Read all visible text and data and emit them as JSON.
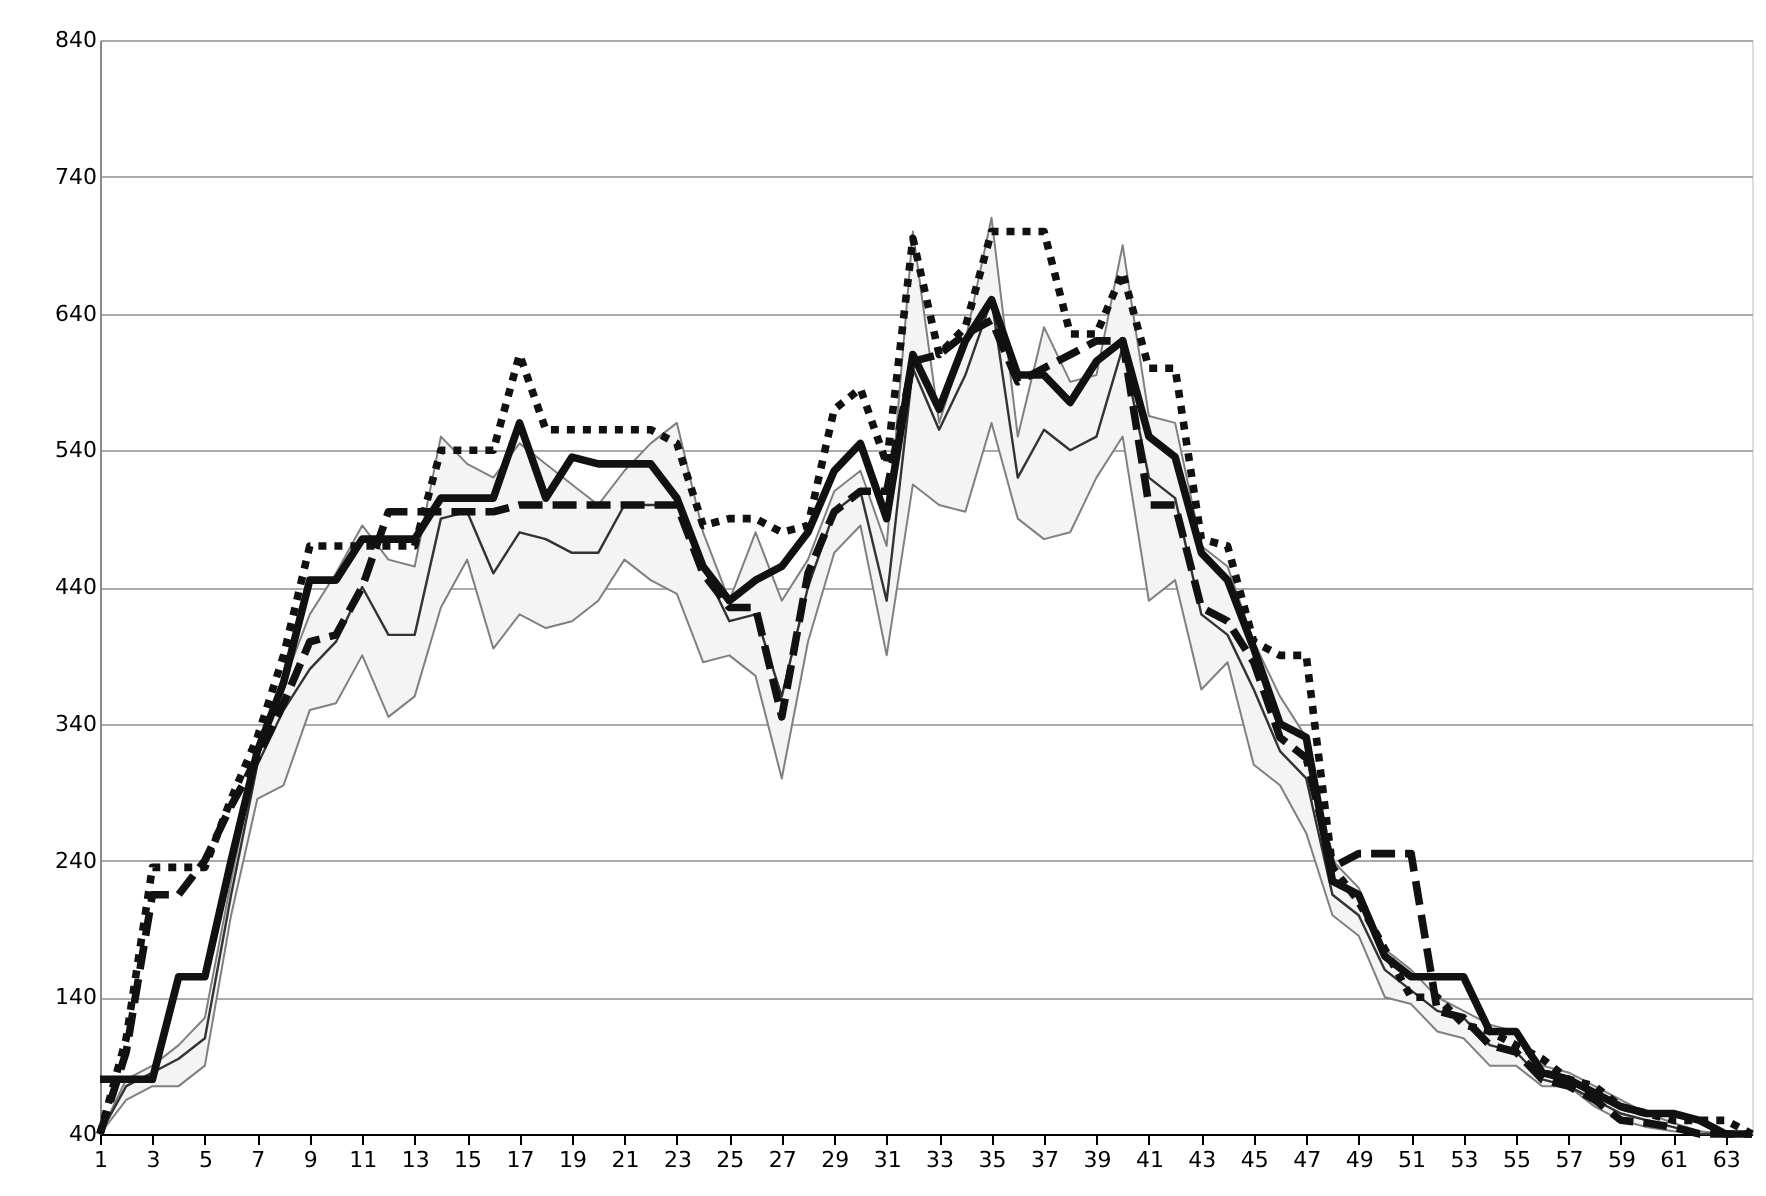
{
  "chart_data": {
    "type": "line",
    "xlim": [
      1,
      64
    ],
    "xticks": [
      1,
      3,
      5,
      7,
      9,
      11,
      13,
      15,
      17,
      19,
      21,
      23,
      25,
      27,
      29,
      31,
      33,
      35,
      37,
      39,
      41,
      43,
      45,
      47,
      49,
      51,
      53,
      55,
      57,
      59,
      61,
      63
    ],
    "ylim": [
      40,
      840
    ],
    "yticks": [
      40,
      140,
      240,
      340,
      440,
      540,
      640,
      740,
      840
    ],
    "grid": "y",
    "x": [
      1,
      2,
      3,
      4,
      5,
      6,
      7,
      8,
      9,
      10,
      11,
      12,
      13,
      14,
      15,
      16,
      17,
      18,
      19,
      20,
      21,
      22,
      23,
      24,
      25,
      26,
      27,
      28,
      29,
      30,
      31,
      32,
      33,
      34,
      35,
      36,
      37,
      38,
      39,
      40,
      41,
      42,
      43,
      44,
      45,
      46,
      47,
      48,
      49,
      50,
      51,
      52,
      53,
      54,
      55,
      56,
      57,
      58,
      59,
      60,
      61,
      62,
      63,
      64
    ],
    "series": [
      {
        "color": "#333333",
        "line_style": "solid",
        "values": [
          40,
          75,
          85,
          95,
          110,
          215,
          310,
          350,
          380,
          400,
          440,
          405,
          405,
          490,
          495,
          450,
          480,
          475,
          465,
          465,
          500,
          500,
          500,
          455,
          415,
          420,
          360,
          440,
          495,
          510,
          430,
          600,
          555,
          595,
          650,
          520,
          555,
          540,
          550,
          615,
          520,
          505,
          420,
          405,
          365,
          320,
          300,
          215,
          200,
          160,
          145,
          130,
          125,
          105,
          100,
          80,
          75,
          65,
          55,
          50,
          45,
          40,
          40,
          40
        ],
        "lower": [
          40,
          65,
          75,
          75,
          90,
          200,
          285,
          295,
          350,
          355,
          390,
          345,
          360,
          425,
          460,
          395,
          420,
          410,
          415,
          430,
          460,
          445,
          435,
          385,
          390,
          375,
          300,
          400,
          465,
          485,
          390,
          515,
          500,
          495,
          560,
          490,
          475,
          480,
          520,
          550,
          430,
          445,
          365,
          385,
          310,
          295,
          260,
          200,
          185,
          140,
          135,
          115,
          110,
          90,
          90,
          75,
          75,
          60,
          50,
          45,
          42,
          40,
          40,
          40
        ],
        "upper": [
          40,
          80,
          90,
          105,
          125,
          225,
          320,
          370,
          420,
          450,
          485,
          460,
          455,
          550,
          530,
          520,
          545,
          530,
          515,
          500,
          525,
          545,
          560,
          480,
          430,
          480,
          430,
          460,
          510,
          525,
          470,
          700,
          560,
          620,
          710,
          550,
          630,
          590,
          595,
          690,
          565,
          560,
          470,
          455,
          400,
          360,
          330,
          240,
          220,
          175,
          160,
          140,
          130,
          120,
          115,
          90,
          85,
          75,
          65,
          55,
          48,
          42,
          40,
          40
        ]
      },
      {
        "color": "#111111",
        "line_style": "dotted",
        "values": [
          40,
          110,
          235,
          235,
          235,
          285,
          330,
          390,
          470,
          470,
          470,
          470,
          470,
          540,
          540,
          540,
          610,
          555,
          555,
          555,
          555,
          555,
          545,
          485,
          490,
          490,
          480,
          485,
          570,
          585,
          530,
          695,
          610,
          630,
          700,
          700,
          700,
          625,
          625,
          670,
          600,
          600,
          475,
          470,
          400,
          390,
          390,
          235,
          210,
          175,
          140,
          140,
          120,
          115,
          105,
          95,
          80,
          75,
          60,
          55,
          50,
          50,
          50,
          40
        ]
      },
      {
        "color": "#111111",
        "line_style": "dashed",
        "values": [
          40,
          100,
          215,
          215,
          240,
          280,
          315,
          355,
          400,
          405,
          440,
          495,
          495,
          495,
          495,
          495,
          500,
          500,
          500,
          500,
          500,
          500,
          500,
          450,
          425,
          425,
          345,
          450,
          495,
          510,
          510,
          605,
          610,
          625,
          635,
          590,
          600,
          610,
          620,
          620,
          500,
          500,
          425,
          415,
          385,
          330,
          315,
          235,
          245,
          245,
          245,
          130,
          125,
          105,
          100,
          80,
          75,
          65,
          50,
          48,
          45,
          40,
          40,
          40
        ]
      },
      {
        "color": "#111111",
        "line_style": "solid",
        "values": [
          80,
          80,
          80,
          155,
          155,
          240,
          320,
          370,
          445,
          445,
          475,
          475,
          475,
          505,
          505,
          505,
          560,
          505,
          535,
          530,
          530,
          530,
          505,
          455,
          430,
          445,
          455,
          480,
          525,
          545,
          490,
          610,
          570,
          620,
          650,
          595,
          595,
          575,
          605,
          620,
          550,
          535,
          465,
          445,
          395,
          340,
          330,
          225,
          215,
          170,
          155,
          155,
          155,
          115,
          115,
          85,
          80,
          70,
          60,
          55,
          55,
          50,
          40,
          40
        ]
      }
    ]
  }
}
